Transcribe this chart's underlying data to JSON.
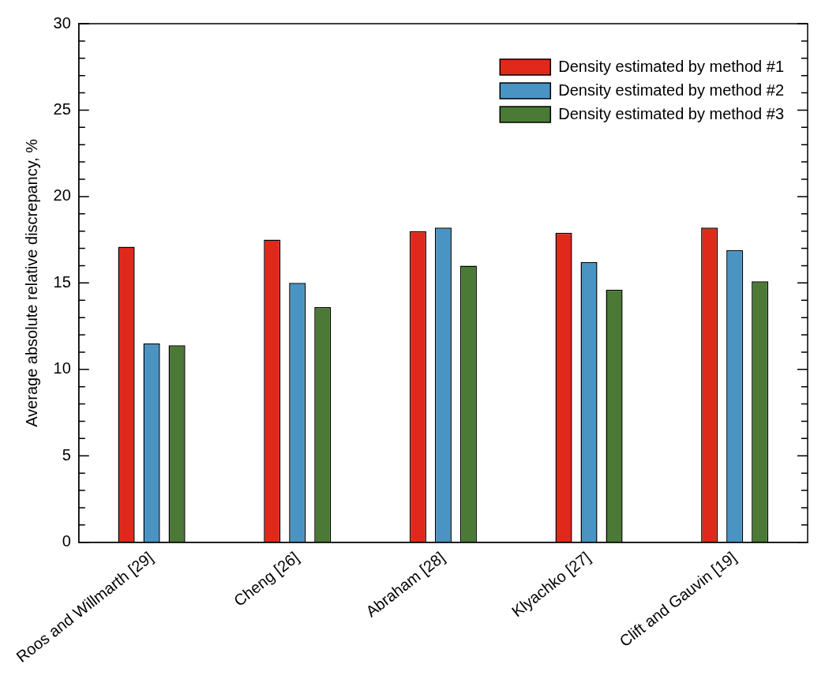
{
  "chart_data": {
    "type": "bar",
    "ylabel": "Average absolute relative discrepancy, %",
    "categories": [
      "Roos and Willmarth [29]",
      "Cheng [26]",
      "Abraham [28]",
      "Klyachko [27]",
      "Clift and Gauvin [19]"
    ],
    "series": [
      {
        "name": "Density estimated by method #1",
        "color": "#e0291b",
        "values": [
          17.1,
          17.5,
          18.0,
          17.9,
          18.2
        ]
      },
      {
        "name": "Density estimated by method #2",
        "color": "#4a94c4",
        "values": [
          11.5,
          15.0,
          18.2,
          16.2,
          16.9
        ]
      },
      {
        "name": "Density estimated by method #3",
        "color": "#4a7a35",
        "values": [
          11.4,
          13.6,
          16.0,
          14.6,
          15.1
        ]
      }
    ],
    "ylim": [
      0,
      30
    ],
    "yticks": [
      0,
      {
        "value": 1,
        "label": null
      },
      {
        "value": 2,
        "label": null
      },
      {
        "value": 3,
        "label": null
      },
      {
        "value": 4,
        "label": null
      },
      5,
      {
        "value": 6,
        "label": null
      },
      {
        "value": 7,
        "label": null
      },
      {
        "value": 8,
        "label": null
      },
      {
        "value": 9,
        "label": null
      },
      10,
      {
        "value": 11,
        "label": null
      },
      {
        "value": 12,
        "label": null
      },
      {
        "value": 13,
        "label": null
      },
      {
        "value": 14,
        "label": null
      },
      15,
      {
        "value": 16,
        "label": null
      },
      {
        "value": 17,
        "label": null
      },
      {
        "value": 18,
        "label": null
      },
      {
        "value": 19,
        "label": null
      },
      20,
      {
        "value": 21,
        "label": null
      },
      {
        "value": 22,
        "label": null
      },
      {
        "value": 23,
        "label": null
      },
      {
        "value": 24,
        "label": null
      },
      25,
      {
        "value": 26,
        "label": null
      },
      {
        "value": 27,
        "label": null
      },
      {
        "value": 28,
        "label": null
      },
      {
        "value": 29,
        "label": null
      },
      30
    ],
    "grid": false,
    "legend": "top right"
  }
}
